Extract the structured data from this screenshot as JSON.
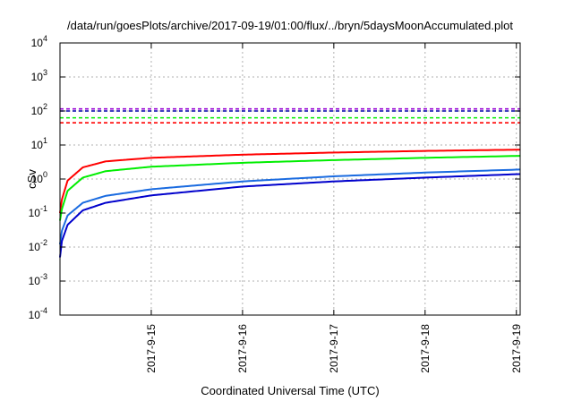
{
  "chart_data": {
    "type": "line",
    "title": "/data/run/goesPlots/archive/2017-09-19/01:00/flux/../bryn/5daysMoonAccumulated.plot",
    "xlabel": "Coordinated Universal Time (UTC)",
    "ylabel": "cSv",
    "y_scale": "log",
    "ylim": [
      0.0001,
      10000
    ],
    "y_ticks": [
      {
        "mant": "10",
        "exp": "-4",
        "value": 0.0001
      },
      {
        "mant": "10",
        "exp": "-3",
        "value": 0.001
      },
      {
        "mant": "10",
        "exp": "-2",
        "value": 0.01
      },
      {
        "mant": "10",
        "exp": "-1",
        "value": 0.1
      },
      {
        "mant": "10",
        "exp": "0",
        "value": 1
      },
      {
        "mant": "10",
        "exp": "1",
        "value": 10
      },
      {
        "mant": "10",
        "exp": "2",
        "value": 100
      },
      {
        "mant": "10",
        "exp": "3",
        "value": 1000
      },
      {
        "mant": "10",
        "exp": "4",
        "value": 10000
      }
    ],
    "x_ticks": [
      "2017-9-15",
      "2017-9-16",
      "2017-9-17",
      "2017-9-18",
      "2017-9-19"
    ],
    "xlim": [
      "2017-09-14 00:00",
      "2017-09-19 01:00"
    ],
    "grid": true,
    "series": [
      {
        "color": "#ff0000",
        "style": "solid",
        "x": [
          "2017-09-14 00:00",
          "2017-09-14 00:30",
          "2017-09-14 02:00",
          "2017-09-14 06:00",
          "2017-09-14 12:00",
          "2017-09-15 00:00",
          "2017-09-16 00:00",
          "2017-09-17 00:00",
          "2017-09-18 00:00",
          "2017-09-19 01:00"
        ],
        "y": [
          0.1,
          0.25,
          0.9,
          2.2,
          3.3,
          4.2,
          5.2,
          6.0,
          6.7,
          7.3
        ]
      },
      {
        "color": "#00ee00",
        "style": "solid",
        "x": [
          "2017-09-14 00:00",
          "2017-09-14 00:30",
          "2017-09-14 02:00",
          "2017-09-14 06:00",
          "2017-09-14 12:00",
          "2017-09-15 00:00",
          "2017-09-16 00:00",
          "2017-09-17 00:00",
          "2017-09-18 00:00",
          "2017-09-19 01:00"
        ],
        "y": [
          0.06,
          0.13,
          0.45,
          1.1,
          1.7,
          2.3,
          3.0,
          3.6,
          4.2,
          4.8
        ]
      },
      {
        "color": "#1a6be0",
        "style": "solid",
        "x": [
          "2017-09-14 00:00",
          "2017-09-14 00:30",
          "2017-09-14 02:00",
          "2017-09-14 06:00",
          "2017-09-14 12:00",
          "2017-09-15 00:00",
          "2017-09-16 00:00",
          "2017-09-17 00:00",
          "2017-09-18 00:00",
          "2017-09-19 01:00"
        ],
        "y": [
          0.012,
          0.03,
          0.085,
          0.2,
          0.32,
          0.5,
          0.85,
          1.2,
          1.55,
          1.9
        ]
      },
      {
        "color": "#0000cc",
        "style": "solid",
        "x": [
          "2017-09-14 00:00",
          "2017-09-14 00:30",
          "2017-09-14 02:00",
          "2017-09-14 06:00",
          "2017-09-14 12:00",
          "2017-09-15 00:00",
          "2017-09-16 00:00",
          "2017-09-17 00:00",
          "2017-09-18 00:00",
          "2017-09-19 01:00"
        ],
        "y": [
          0.005,
          0.015,
          0.045,
          0.12,
          0.2,
          0.33,
          0.6,
          0.85,
          1.1,
          1.4
        ]
      }
    ],
    "reference_lines": [
      {
        "color": "#9400d3",
        "style": "dashed",
        "y": 115
      },
      {
        "color": "#0000aa",
        "style": "dashed",
        "y": 100
      },
      {
        "color": "#00ee00",
        "style": "dashed",
        "y": 63
      },
      {
        "color": "#ff0000",
        "style": "dashed",
        "y": 45
      }
    ]
  }
}
